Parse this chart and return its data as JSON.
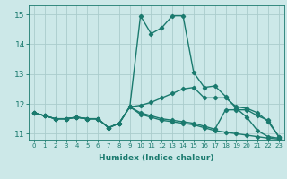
{
  "xlabel": "Humidex (Indice chaleur)",
  "ylabel": "",
  "background_color": "#cce8e8",
  "grid_color": "#aacccc",
  "line_color": "#1a7a6e",
  "xlim": [
    -0.5,
    23.5
  ],
  "ylim": [
    10.8,
    15.3
  ],
  "yticks": [
    11,
    12,
    13,
    14,
    15
  ],
  "xticks": [
    0,
    1,
    2,
    3,
    4,
    5,
    6,
    7,
    8,
    9,
    10,
    11,
    12,
    13,
    14,
    15,
    16,
    17,
    18,
    19,
    20,
    21,
    22,
    23
  ],
  "series": [
    [
      11.7,
      11.6,
      11.5,
      11.5,
      11.55,
      11.5,
      11.5,
      11.2,
      11.35,
      11.9,
      14.95,
      14.35,
      14.55,
      14.95,
      14.95,
      13.05,
      12.55,
      12.6,
      12.25,
      11.85,
      11.55,
      11.1,
      10.9,
      10.85
    ],
    [
      11.7,
      11.6,
      11.5,
      11.5,
      11.55,
      11.5,
      11.5,
      11.2,
      11.35,
      11.9,
      11.95,
      12.05,
      12.2,
      12.35,
      12.5,
      12.55,
      12.2,
      12.2,
      12.2,
      11.9,
      11.85,
      11.7,
      11.4,
      10.9
    ],
    [
      11.7,
      11.6,
      11.5,
      11.5,
      11.55,
      11.5,
      11.5,
      11.2,
      11.35,
      11.9,
      11.7,
      11.6,
      11.5,
      11.45,
      11.4,
      11.35,
      11.25,
      11.15,
      11.8,
      11.8,
      11.8,
      11.6,
      11.45,
      10.9
    ],
    [
      11.7,
      11.6,
      11.5,
      11.5,
      11.55,
      11.5,
      11.5,
      11.2,
      11.35,
      11.9,
      11.65,
      11.55,
      11.45,
      11.4,
      11.35,
      11.3,
      11.2,
      11.1,
      11.05,
      11.0,
      10.95,
      10.9,
      10.85,
      10.82
    ]
  ],
  "marker": "D",
  "marker_size": 2.2,
  "line_width": 1.0
}
